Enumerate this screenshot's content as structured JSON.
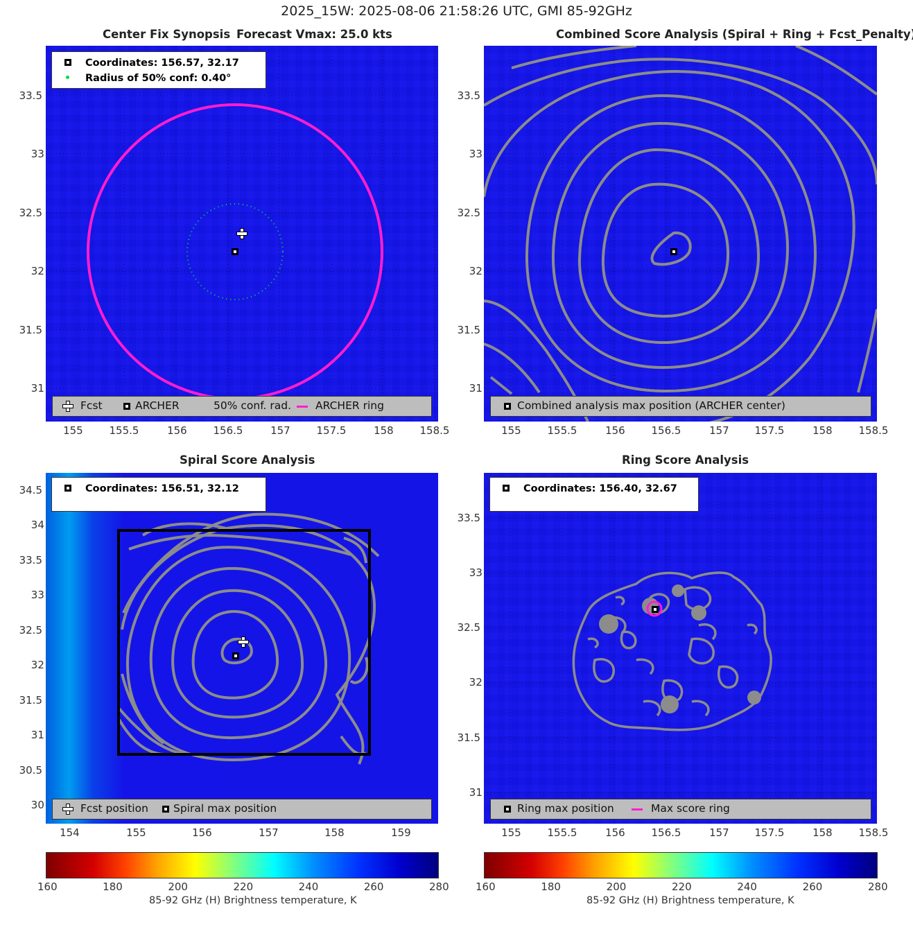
{
  "suptitle": "2025_15W: 2025-08-06 21:58:26 UTC, GMI 85-92GHz",
  "colors": {
    "background_field": "#1414e8",
    "contour": "#8c8c8c",
    "archer_ring": "#ff1ecf",
    "conf_radius": "#00e040",
    "box": "#000000"
  },
  "panels": {
    "synopsis": {
      "title": "Center Fix Synopsis",
      "subtitle": "Forecast Vmax: 25.0 kts",
      "info_coords": "Coordinates: 156.57, 32.17",
      "info_radius": "Radius of 50% conf: 0.40°",
      "legend": {
        "fcst": "Fcst",
        "archer": "ARCHER",
        "conf": "50% conf. rad.",
        "ring": "ARCHER ring"
      },
      "xticks": [
        "155",
        "155.5",
        "156",
        "156.5",
        "157",
        "157.5",
        "158",
        "158.5"
      ],
      "yticks": [
        "31",
        "31.5",
        "32",
        "32.5",
        "33",
        "33.5"
      ]
    },
    "combined": {
      "title": "Combined Score Analysis (Spiral + Ring + Fcst_Penalty)",
      "legend": {
        "max": "Combined analysis max position (ARCHER center)"
      },
      "xticks": [
        "155",
        "155.5",
        "156",
        "156.5",
        "157",
        "157.5",
        "158",
        "158.5"
      ],
      "yticks": [
        "31",
        "31.5",
        "32",
        "32.5",
        "33",
        "33.5"
      ]
    },
    "spiral": {
      "title": "Spiral Score Analysis",
      "info_coords": "Coordinates: 156.51, 32.12",
      "legend": {
        "fcst": "Fcst position",
        "max": "Spiral max position"
      },
      "xticks": [
        "154",
        "155",
        "156",
        "157",
        "158",
        "159"
      ],
      "yticks": [
        "30",
        "30.5",
        "31",
        "31.5",
        "32",
        "32.5",
        "33",
        "33.5",
        "34",
        "34.5"
      ]
    },
    "ring": {
      "title": "Ring Score Analysis",
      "info_coords": "Coordinates: 156.40, 32.67",
      "legend": {
        "max": "Ring max position",
        "ring": "Max score ring"
      },
      "xticks": [
        "155",
        "155.5",
        "156",
        "156.5",
        "157",
        "157.5",
        "158",
        "158.5"
      ],
      "yticks": [
        "31",
        "31.5",
        "32",
        "32.5",
        "33",
        "33.5"
      ]
    }
  },
  "colorbar": {
    "ticks": [
      "160",
      "180",
      "200",
      "220",
      "240",
      "260",
      "280"
    ],
    "label": "85-92 GHz (H) Brightness temperature, K"
  },
  "chart_data": [
    {
      "type": "heatmap",
      "title": "Center Fix Synopsis",
      "subtitle": "Forecast Vmax: 25.0 kts",
      "xlim": [
        154.75,
        158.55
      ],
      "ylim": [
        30.72,
        33.9
      ],
      "fcst_position": [
        156.63,
        32.33
      ],
      "archer_center": [
        156.57,
        32.17
      ],
      "conf_radius_deg": 0.4,
      "archer_ring_radius_deg": 1.42,
      "colorbar_range": [
        160,
        280
      ]
    },
    {
      "type": "heatmap",
      "title": "Combined Score Analysis (Spiral + Ring + Fcst_Penalty)",
      "xlim": [
        154.75,
        158.55
      ],
      "ylim": [
        30.72,
        33.9
      ],
      "max_position": [
        156.57,
        32.17
      ],
      "contours": "concentric score contours centered on max position"
    },
    {
      "type": "heatmap",
      "title": "Spiral Score Analysis",
      "xlim": [
        153.65,
        159.55
      ],
      "ylim": [
        29.75,
        34.72
      ],
      "max_position": [
        156.51,
        32.12
      ],
      "fcst_position": [
        156.63,
        32.33
      ],
      "search_box": {
        "x": [
          154.8,
          158.55
        ],
        "y": [
          30.72,
          33.92
        ]
      }
    },
    {
      "type": "heatmap",
      "title": "Ring Score Analysis",
      "xlim": [
        154.75,
        158.55
      ],
      "ylim": [
        30.72,
        33.9
      ],
      "max_position": [
        156.4,
        32.67
      ],
      "colorbar_range": [
        160,
        280
      ]
    }
  ]
}
